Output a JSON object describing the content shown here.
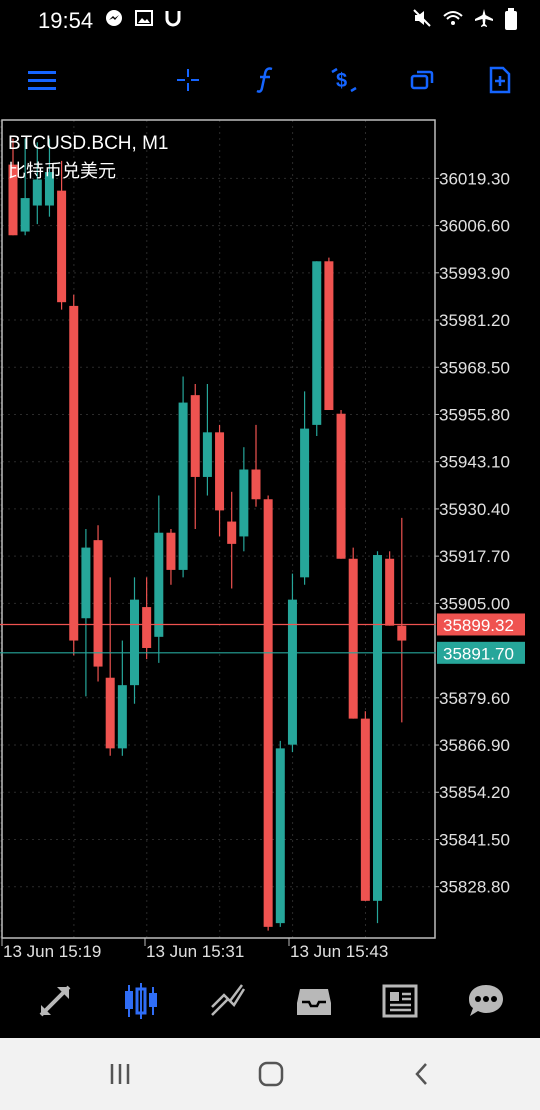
{
  "status_bar": {
    "time": "19:54",
    "left_icons": [
      "messenger-icon",
      "gallery-icon",
      "u-icon"
    ],
    "right_icons": [
      "mute-icon",
      "wifi-icon",
      "airplane-icon",
      "battery-icon"
    ]
  },
  "toolbar": {
    "items": [
      "menu-icon",
      "crosshair-icon",
      "function-icon",
      "dollar-chart-icon",
      "windows-icon",
      "new-order-icon"
    ]
  },
  "colors": {
    "bull": "#26a69a",
    "bear": "#ef5350",
    "grid": "#2a2a2a",
    "axis": "#c0c0c0",
    "accent": "#1565ff"
  },
  "chart_data": {
    "type": "candlestick",
    "title": "BTCUSD.BCH, M1",
    "subtitle": "比特币兑美元",
    "ylim": [
      35815.0,
      36035.0
    ],
    "y_ticks": [
      "36019.30",
      "36006.60",
      "35993.90",
      "35981.20",
      "35968.50",
      "35955.80",
      "35943.10",
      "35930.40",
      "35917.70",
      "35905.00",
      "35879.60",
      "35866.90",
      "35854.20",
      "35841.50",
      "35828.80"
    ],
    "x_labels": [
      "13 Jun 15:19",
      "13 Jun 15:31",
      "13 Jun 15:43"
    ],
    "bid_line": {
      "value": 35899.32,
      "label": "35899.32",
      "color": "#ef5350"
    },
    "ask_line": {
      "value": 35891.7,
      "label": "35891.70",
      "color": "#26a69a"
    },
    "candles": [
      {
        "o": 36023.0,
        "h": 36030.0,
        "l": 36004.0,
        "c": 36004.0
      },
      {
        "o": 36005.0,
        "h": 36030.0,
        "l": 36004.0,
        "c": 36014.0
      },
      {
        "o": 36012.0,
        "h": 36029.0,
        "l": 36007.0,
        "c": 36019.0
      },
      {
        "o": 36012.0,
        "h": 36030.0,
        "l": 36009.0,
        "c": 36021.0
      },
      {
        "o": 36016.0,
        "h": 36024.0,
        "l": 35984.0,
        "c": 35986.0
      },
      {
        "o": 35985.0,
        "h": 35988.0,
        "l": 35891.0,
        "c": 35895.0
      },
      {
        "o": 35901.0,
        "h": 35925.0,
        "l": 35880.0,
        "c": 35920.0
      },
      {
        "o": 35922.0,
        "h": 35926.0,
        "l": 35884.0,
        "c": 35888.0
      },
      {
        "o": 35885.0,
        "h": 35912.0,
        "l": 35864.0,
        "c": 35866.0
      },
      {
        "o": 35866.0,
        "h": 35895.0,
        "l": 35864.0,
        "c": 35883.0
      },
      {
        "o": 35883.0,
        "h": 35912.0,
        "l": 35878.0,
        "c": 35906.0
      },
      {
        "o": 35904.0,
        "h": 35912.0,
        "l": 35890.0,
        "c": 35893.0
      },
      {
        "o": 35896.0,
        "h": 35934.0,
        "l": 35889.0,
        "c": 35924.0
      },
      {
        "o": 35924.0,
        "h": 35925.0,
        "l": 35910.0,
        "c": 35914.0
      },
      {
        "o": 35914.0,
        "h": 35966.0,
        "l": 35912.0,
        "c": 35959.0
      },
      {
        "o": 35961.0,
        "h": 35964.0,
        "l": 35925.0,
        "c": 35939.0
      },
      {
        "o": 35939.0,
        "h": 35964.0,
        "l": 35934.0,
        "c": 35951.0
      },
      {
        "o": 35951.0,
        "h": 35953.0,
        "l": 35923.0,
        "c": 35930.0
      },
      {
        "o": 35927.0,
        "h": 35935.0,
        "l": 35909.0,
        "c": 35921.0
      },
      {
        "o": 35923.0,
        "h": 35947.0,
        "l": 35919.0,
        "c": 35941.0
      },
      {
        "o": 35941.0,
        "h": 35953.0,
        "l": 35931.0,
        "c": 35933.0
      },
      {
        "o": 35933.0,
        "h": 35934.0,
        "l": 35817.0,
        "c": 35818.0
      },
      {
        "o": 35819.0,
        "h": 35868.0,
        "l": 35818.0,
        "c": 35866.0
      },
      {
        "o": 35867.0,
        "h": 35913.0,
        "l": 35865.0,
        "c": 35906.0
      },
      {
        "o": 35912.0,
        "h": 35962.0,
        "l": 35910.0,
        "c": 35952.0
      },
      {
        "o": 35953.0,
        "h": 35997.0,
        "l": 35950.0,
        "c": 35997.0
      },
      {
        "o": 35997.0,
        "h": 35998.0,
        "l": 35957.0,
        "c": 35957.0
      },
      {
        "o": 35956.0,
        "h": 35957.0,
        "l": 35917.0,
        "c": 35917.0
      },
      {
        "o": 35917.0,
        "h": 35920.0,
        "l": 35874.0,
        "c": 35874.0
      },
      {
        "o": 35874.0,
        "h": 35876.0,
        "l": 35825.0,
        "c": 35825.0
      },
      {
        "o": 35825.0,
        "h": 35919.0,
        "l": 35819.0,
        "c": 35918.0
      },
      {
        "o": 35917.0,
        "h": 35919.0,
        "l": 35899.0,
        "c": 35899.0
      },
      {
        "o": 35899.0,
        "h": 35928.0,
        "l": 35873.0,
        "c": 35895.0
      }
    ]
  },
  "bottom_nav": {
    "items": [
      "trade-arrows-icon",
      "chart-candles-icon",
      "trend-icon",
      "inbox-icon",
      "news-icon",
      "chat-icon"
    ]
  },
  "system_nav": {
    "items": [
      "recents-icon",
      "home-icon",
      "back-icon"
    ]
  }
}
